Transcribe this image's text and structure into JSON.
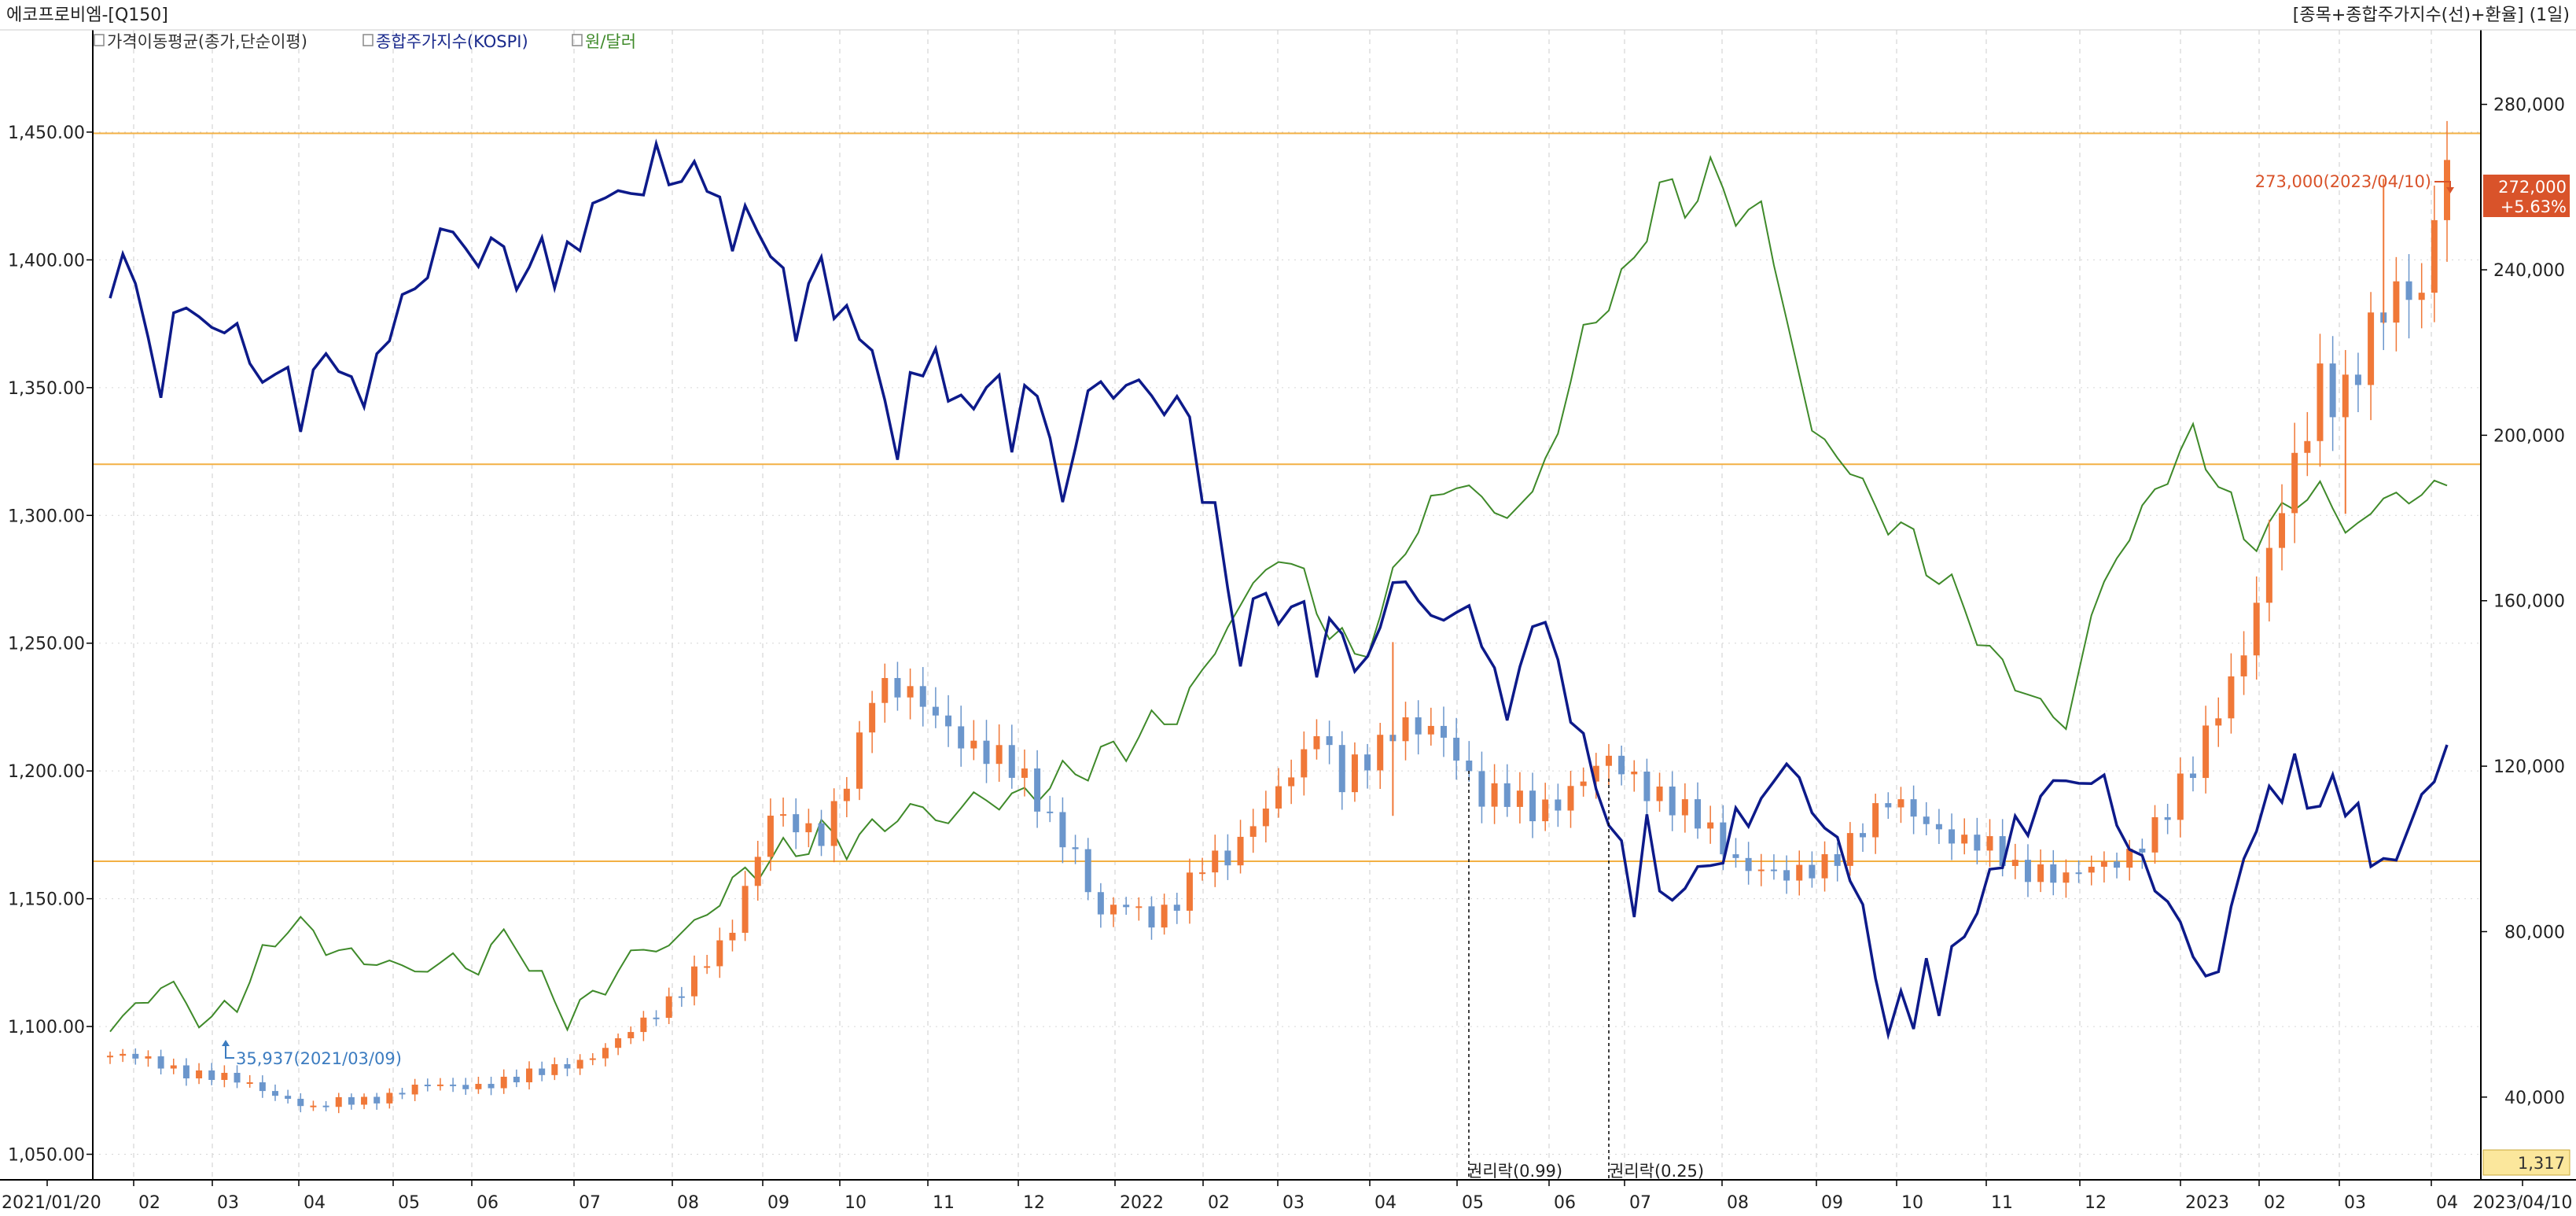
{
  "header": {
    "title": "에코프로비엠-[Q150]",
    "right_title": "[종목+종합주가지수(선)+환율] (1일)"
  },
  "legend": {
    "items": [
      {
        "label": "가격이동평균(종가,단순이평)",
        "color": "#333333",
        "icon": "checkbox-icon"
      },
      {
        "label": "종합주가지수(KOSPI)",
        "color": "#1a2a8c",
        "icon": "checkbox-icon"
      },
      {
        "label": "원/달러",
        "color": "#3f8a2a",
        "icon": "checkbox-icon"
      }
    ]
  },
  "colors": {
    "up": "#f07838",
    "down": "#6b96cc",
    "kospi": "#0d1a8a",
    "fx": "#3f8a2a",
    "hline": "#f3b044",
    "grid": "#d6d6d6",
    "badge": "#d9532a",
    "fx_badge": "#fbe79c"
  },
  "annotations": {
    "high_label": "273,000(2023/04/10)",
    "low_label": "35,937(2021/03/09)",
    "rights1": "권리락(0.99)",
    "rights2": "권리락(0.25)",
    "price_badge": "272,000",
    "price_change": "+5.63%",
    "fx_badge": "1,317"
  },
  "chart_data": {
    "type": "candlestick",
    "x_labels": [
      "2021/01/20",
      "02",
      "03",
      "04",
      "05",
      "06",
      "07",
      "08",
      "09",
      "10",
      "11",
      "12",
      "2022",
      "02",
      "03",
      "04",
      "05",
      "06",
      "07",
      "08",
      "09",
      "10",
      "11",
      "12",
      "2023",
      "02",
      "03",
      "04",
      "2023/04/10"
    ],
    "left_axis": {
      "series": "원/달러",
      "ylim": [
        1040,
        1490
      ],
      "ticks": [
        "1,450.00",
        "1,400.00",
        "1,350.00",
        "1,300.00",
        "1,250.00",
        "1,200.00",
        "1,150.00",
        "1,100.00",
        "1,050.00"
      ]
    },
    "right_axis": {
      "series": "에코프로비엠",
      "ylim": [
        20000,
        298000
      ],
      "ticks": [
        "280,000",
        "240,000",
        "200,000",
        "160,000",
        "120,000",
        "80,000",
        "40,000"
      ]
    },
    "horizontal_lines_right_units": [
      273000,
      193000,
      97000
    ],
    "stock_close": [
      [
        0,
        50000
      ],
      [
        4,
        48000
      ],
      [
        8,
        45000
      ],
      [
        12,
        42000
      ],
      [
        14,
        40000
      ],
      [
        16,
        37000
      ],
      [
        18,
        38500
      ],
      [
        20,
        39500
      ],
      [
        24,
        42000
      ],
      [
        28,
        43000
      ],
      [
        32,
        44000
      ],
      [
        34,
        46000
      ],
      [
        36,
        48500
      ],
      [
        38,
        50000
      ],
      [
        40,
        53000
      ],
      [
        42,
        58000
      ],
      [
        44,
        64000
      ],
      [
        46,
        70000
      ],
      [
        48,
        75000
      ],
      [
        49,
        80000
      ],
      [
        50,
        90000
      ],
      [
        51,
        100000
      ],
      [
        52,
        110000
      ],
      [
        53,
        109000
      ],
      [
        54,
        105000
      ],
      [
        55,
        103000
      ],
      [
        56,
        101000
      ],
      [
        57,
        108000
      ],
      [
        58,
        118000
      ],
      [
        59,
        127000
      ],
      [
        60,
        141000
      ],
      [
        62,
        138000
      ],
      [
        64,
        133000
      ],
      [
        66,
        130000
      ],
      [
        68,
        126000
      ],
      [
        70,
        121000
      ],
      [
        72,
        115000
      ],
      [
        74,
        108000
      ],
      [
        76,
        100000
      ],
      [
        77,
        90000
      ],
      [
        78,
        83000
      ],
      [
        80,
        86000
      ],
      [
        82,
        84000
      ],
      [
        84,
        88000
      ],
      [
        86,
        95000
      ],
      [
        88,
        97000
      ],
      [
        90,
        108000
      ],
      [
        92,
        115000
      ],
      [
        94,
        120000
      ],
      [
        95,
        128000
      ],
      [
        96,
        122000
      ],
      [
        97,
        118000
      ],
      [
        98,
        122000
      ],
      [
        100,
        125000
      ],
      [
        102,
        128000
      ],
      [
        103,
        127000
      ],
      [
        104,
        130000
      ],
      [
        105,
        128000
      ],
      [
        106,
        125000
      ],
      [
        107,
        118000
      ],
      [
        108,
        112000
      ],
      [
        110,
        111000
      ],
      [
        112,
        110000
      ],
      [
        114,
        113000
      ],
      [
        116,
        116000
      ],
      [
        118,
        120000
      ],
      [
        120,
        118000
      ],
      [
        122,
        114000
      ],
      [
        124,
        108000
      ],
      [
        126,
        103000
      ],
      [
        128,
        98000
      ],
      [
        130,
        96000
      ],
      [
        132,
        92000
      ],
      [
        134,
        94000
      ],
      [
        136,
        100000
      ],
      [
        138,
        106000
      ],
      [
        140,
        110000
      ],
      [
        142,
        108000
      ],
      [
        144,
        106000
      ],
      [
        146,
        102000
      ],
      [
        148,
        99000
      ],
      [
        150,
        95000
      ],
      [
        152,
        96000
      ],
      [
        154,
        93000
      ],
      [
        156,
        94000
      ],
      [
        158,
        97000
      ],
      [
        160,
        103000
      ],
      [
        162,
        109000
      ],
      [
        164,
        118000
      ],
      [
        166,
        135000
      ],
      [
        168,
        150000
      ],
      [
        170,
        170000
      ],
      [
        172,
        190000
      ],
      [
        174,
        215000
      ],
      [
        176,
        212000
      ],
      [
        178,
        222000
      ],
      [
        180,
        232000
      ],
      [
        182,
        238000
      ],
      [
        184,
        272000
      ]
    ],
    "stock_spikes": [
      [
        101,
        150000
      ],
      [
        101,
        108000
      ],
      [
        179,
        262000
      ],
      [
        180,
        228000
      ],
      [
        176,
        181000
      ]
    ],
    "kospi": [
      [
        0,
        1385
      ],
      [
        1,
        1404
      ],
      [
        2,
        1388
      ],
      [
        3,
        1372
      ],
      [
        4,
        1345
      ],
      [
        5,
        1378
      ],
      [
        6,
        1385
      ],
      [
        7,
        1372
      ],
      [
        8,
        1380
      ],
      [
        9,
        1366
      ],
      [
        10,
        1378
      ],
      [
        11,
        1360
      ],
      [
        12,
        1348
      ],
      [
        13,
        1362
      ],
      [
        14,
        1350
      ],
      [
        15,
        1340
      ],
      [
        16,
        1352
      ],
      [
        17,
        1365
      ],
      [
        18,
        1358
      ],
      [
        19,
        1350
      ],
      [
        20,
        1348
      ],
      [
        21,
        1358
      ],
      [
        22,
        1372
      ],
      [
        23,
        1385
      ],
      [
        24,
        1388
      ],
      [
        25,
        1395
      ],
      [
        26,
        1410
      ],
      [
        27,
        1412
      ],
      [
        28,
        1405
      ],
      [
        29,
        1395
      ],
      [
        30,
        1412
      ],
      [
        31,
        1402
      ],
      [
        32,
        1390
      ],
      [
        33,
        1398
      ],
      [
        34,
        1405
      ],
      [
        35,
        1395
      ],
      [
        36,
        1400
      ],
      [
        37,
        1410
      ],
      [
        38,
        1418
      ],
      [
        39,
        1425
      ],
      [
        40,
        1430
      ],
      [
        41,
        1420
      ],
      [
        42,
        1433
      ],
      [
        43,
        1438
      ],
      [
        44,
        1435
      ],
      [
        45,
        1428
      ],
      [
        46,
        1438
      ],
      [
        47,
        1430
      ],
      [
        48,
        1420
      ],
      [
        49,
        1408
      ],
      [
        50,
        1418
      ],
      [
        51,
        1412
      ],
      [
        52,
        1402
      ],
      [
        53,
        1395
      ],
      [
        54,
        1370
      ],
      [
        55,
        1390
      ],
      [
        56,
        1400
      ],
      [
        57,
        1380
      ],
      [
        58,
        1378
      ],
      [
        59,
        1373
      ],
      [
        60,
        1362
      ],
      [
        61,
        1345
      ],
      [
        62,
        1325
      ],
      [
        63,
        1350
      ],
      [
        64,
        1362
      ],
      [
        65,
        1358
      ],
      [
        66,
        1350
      ],
      [
        67,
        1345
      ],
      [
        68,
        1340
      ],
      [
        69,
        1355
      ],
      [
        70,
        1348
      ],
      [
        71,
        1332
      ],
      [
        72,
        1345
      ],
      [
        73,
        1350
      ],
      [
        74,
        1330
      ],
      [
        75,
        1303
      ],
      [
        76,
        1330
      ],
      [
        77,
        1345
      ],
      [
        78,
        1355
      ],
      [
        79,
        1345
      ],
      [
        80,
        1350
      ],
      [
        81,
        1355
      ],
      [
        82,
        1345
      ],
      [
        83,
        1340
      ],
      [
        84,
        1348
      ],
      [
        85,
        1335
      ],
      [
        86,
        1310
      ],
      [
        87,
        1300
      ],
      [
        88,
        1275
      ],
      [
        89,
        1240
      ],
      [
        90,
        1265
      ],
      [
        91,
        1275
      ],
      [
        92,
        1250
      ],
      [
        93,
        1272
      ],
      [
        94,
        1260
      ],
      [
        95,
        1240
      ],
      [
        96,
        1260
      ],
      [
        97,
        1250
      ],
      [
        98,
        1245
      ],
      [
        99,
        1238
      ],
      [
        100,
        1262
      ],
      [
        101,
        1270
      ],
      [
        102,
        1275
      ],
      [
        103,
        1268
      ],
      [
        104,
        1258
      ],
      [
        105,
        1262
      ],
      [
        106,
        1260
      ],
      [
        107,
        1265
      ],
      [
        108,
        1250
      ],
      [
        109,
        1238
      ],
      [
        110,
        1222
      ],
      [
        111,
        1240
      ],
      [
        112,
        1255
      ],
      [
        113,
        1262
      ],
      [
        114,
        1238
      ],
      [
        115,
        1225
      ],
      [
        116,
        1210
      ],
      [
        117,
        1195
      ],
      [
        118,
        1180
      ],
      [
        119,
        1168
      ],
      [
        120,
        1150
      ],
      [
        121,
        1175
      ],
      [
        122,
        1160
      ],
      [
        123,
        1145
      ],
      [
        124,
        1155
      ],
      [
        125,
        1165
      ],
      [
        126,
        1158
      ],
      [
        127,
        1170
      ],
      [
        128,
        1180
      ],
      [
        129,
        1182
      ],
      [
        130,
        1188
      ],
      [
        131,
        1195
      ],
      [
        132,
        1205
      ],
      [
        133,
        1195
      ],
      [
        134,
        1185
      ],
      [
        135,
        1178
      ],
      [
        136,
        1172
      ],
      [
        137,
        1160
      ],
      [
        138,
        1145
      ],
      [
        139,
        1120
      ],
      [
        140,
        1098
      ],
      [
        141,
        1110
      ],
      [
        142,
        1105
      ],
      [
        143,
        1120
      ],
      [
        144,
        1110
      ],
      [
        145,
        1128
      ],
      [
        146,
        1135
      ],
      [
        147,
        1148
      ],
      [
        148,
        1155
      ],
      [
        149,
        1170
      ],
      [
        150,
        1175
      ],
      [
        151,
        1180
      ],
      [
        152,
        1188
      ],
      [
        153,
        1195
      ],
      [
        154,
        1200
      ],
      [
        155,
        1190
      ],
      [
        156,
        1200
      ],
      [
        157,
        1195
      ],
      [
        158,
        1180
      ],
      [
        159,
        1170
      ],
      [
        160,
        1165
      ],
      [
        161,
        1155
      ],
      [
        162,
        1148
      ],
      [
        163,
        1140
      ],
      [
        164,
        1130
      ],
      [
        165,
        1116
      ],
      [
        166,
        1125
      ],
      [
        167,
        1145
      ],
      [
        168,
        1165
      ],
      [
        169,
        1180
      ],
      [
        170,
        1188
      ],
      [
        171,
        1195
      ],
      [
        172,
        1200
      ],
      [
        173,
        1190
      ],
      [
        174,
        1185
      ],
      [
        175,
        1196
      ],
      [
        176,
        1188
      ],
      [
        177,
        1180
      ],
      [
        178,
        1170
      ],
      [
        179,
        1160
      ],
      [
        180,
        1168
      ],
      [
        181,
        1178
      ],
      [
        182,
        1188
      ],
      [
        183,
        1200
      ],
      [
        184,
        1206
      ]
    ],
    "usd_krw": [
      [
        0,
        1098
      ],
      [
        2,
        1108
      ],
      [
        4,
        1116
      ],
      [
        6,
        1110
      ],
      [
        8,
        1100
      ],
      [
        10,
        1112
      ],
      [
        12,
        1125
      ],
      [
        14,
        1142
      ],
      [
        16,
        1135
      ],
      [
        18,
        1130
      ],
      [
        20,
        1125
      ],
      [
        22,
        1126
      ],
      [
        24,
        1120
      ],
      [
        26,
        1127
      ],
      [
        28,
        1122
      ],
      [
        30,
        1130
      ],
      [
        32,
        1135
      ],
      [
        34,
        1115
      ],
      [
        36,
        1105
      ],
      [
        38,
        1110
      ],
      [
        40,
        1123
      ],
      [
        42,
        1130
      ],
      [
        44,
        1132
      ],
      [
        46,
        1140
      ],
      [
        48,
        1150
      ],
      [
        50,
        1160
      ],
      [
        52,
        1165
      ],
      [
        54,
        1170
      ],
      [
        56,
        1175
      ],
      [
        58,
        1172
      ],
      [
        60,
        1176
      ],
      [
        62,
        1183
      ],
      [
        64,
        1185
      ],
      [
        66,
        1180
      ],
      [
        68,
        1190
      ],
      [
        70,
        1188
      ],
      [
        72,
        1190
      ],
      [
        74,
        1195
      ],
      [
        76,
        1200
      ],
      [
        78,
        1205
      ],
      [
        80,
        1210
      ],
      [
        82,
        1218
      ],
      [
        84,
        1222
      ],
      [
        86,
        1238
      ],
      [
        88,
        1257
      ],
      [
        90,
        1272
      ],
      [
        92,
        1285
      ],
      [
        94,
        1275
      ],
      [
        96,
        1255
      ],
      [
        98,
        1245
      ],
      [
        100,
        1258
      ],
      [
        102,
        1290
      ],
      [
        104,
        1302
      ],
      [
        106,
        1315
      ],
      [
        108,
        1305
      ],
      [
        110,
        1300
      ],
      [
        112,
        1308
      ],
      [
        114,
        1335
      ],
      [
        116,
        1370
      ],
      [
        118,
        1385
      ],
      [
        120,
        1398
      ],
      [
        122,
        1430
      ],
      [
        124,
        1420
      ],
      [
        126,
        1435
      ],
      [
        128,
        1418
      ],
      [
        130,
        1420
      ],
      [
        132,
        1378
      ],
      [
        134,
        1332
      ],
      [
        136,
        1325
      ],
      [
        138,
        1310
      ],
      [
        140,
        1298
      ],
      [
        142,
        1290
      ],
      [
        144,
        1275
      ],
      [
        146,
        1265
      ],
      [
        148,
        1245
      ],
      [
        150,
        1236
      ],
      [
        152,
        1225
      ],
      [
        154,
        1218
      ],
      [
        156,
        1260
      ],
      [
        158,
        1285
      ],
      [
        160,
        1300
      ],
      [
        162,
        1318
      ],
      [
        164,
        1330
      ],
      [
        166,
        1315
      ],
      [
        168,
        1290
      ],
      [
        170,
        1295
      ],
      [
        172,
        1306
      ],
      [
        174,
        1310
      ],
      [
        176,
        1295
      ],
      [
        178,
        1300
      ],
      [
        180,
        1310
      ],
      [
        182,
        1305
      ],
      [
        184,
        1317
      ]
    ]
  }
}
